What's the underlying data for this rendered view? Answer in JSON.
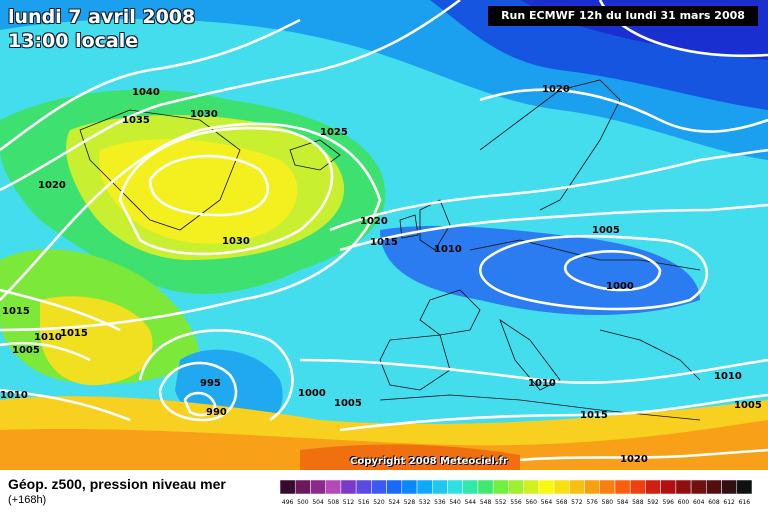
{
  "title": {
    "date": "lundi 7 avril 2008",
    "time": "13:00 locale"
  },
  "run_info": "Run ECMWF 12h du lundi 31 mars 2008",
  "copyright": "Copyright 2008 Meteociel.fr",
  "legend": {
    "title": "Géop. z500, pression niveau mer",
    "subtitle": "(+168h)",
    "scale_values": [
      "496",
      "500",
      "504",
      "508",
      "512",
      "516",
      "520",
      "524",
      "528",
      "532",
      "536",
      "540",
      "544",
      "548",
      "552",
      "556",
      "560",
      "564",
      "568",
      "572",
      "576",
      "580",
      "584",
      "588",
      "592",
      "596",
      "600",
      "604",
      "608",
      "612",
      "616"
    ],
    "scale_colors": [
      "#3a0a2e",
      "#6a1a5a",
      "#8c2a8c",
      "#b24ab8",
      "#7a3ac8",
      "#5a4ae0",
      "#3a5af0",
      "#1a6af8",
      "#0a88f8",
      "#10a8f8",
      "#20c8f0",
      "#30e0e0",
      "#30e8a8",
      "#40e870",
      "#70f040",
      "#a0f030",
      "#d0f020",
      "#f8f810",
      "#f8e010",
      "#f8c010",
      "#f8a010",
      "#f88010",
      "#f86010",
      "#f04010",
      "#d02010",
      "#b01010",
      "#901010",
      "#701010",
      "#501010",
      "#301010",
      "#101010"
    ]
  },
  "isobars": [
    {
      "label": "1040"
    },
    {
      "label": "1035"
    },
    {
      "label": "1030"
    },
    {
      "label": "1025"
    },
    {
      "label": "1020"
    },
    {
      "label": "1030"
    },
    {
      "label": "1020"
    },
    {
      "label": "1015"
    },
    {
      "label": "1010"
    },
    {
      "label": "1020"
    },
    {
      "label": "1005"
    },
    {
      "label": "1000"
    },
    {
      "label": "1015"
    },
    {
      "label": "1010"
    },
    {
      "label": "1015"
    },
    {
      "label": "1005"
    },
    {
      "label": "1010"
    },
    {
      "label": "995"
    },
    {
      "label": "990"
    },
    {
      "label": "1000"
    },
    {
      "label": "1005"
    },
    {
      "label": "1010"
    },
    {
      "label": "1015"
    },
    {
      "label": "1020"
    },
    {
      "label": "1010"
    },
    {
      "label": "1005"
    }
  ]
}
